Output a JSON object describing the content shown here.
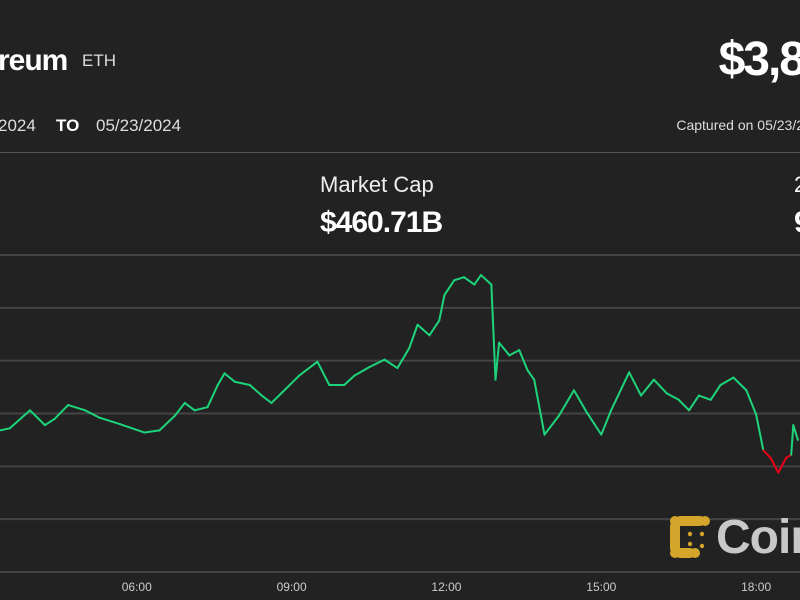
{
  "header": {
    "title": "reum",
    "symbol": "ETH",
    "price": "$3,8",
    "range_from": "2024",
    "range_to_label": "TO",
    "range_to": "05/23/2024",
    "captured": "Captured on 05/23/2"
  },
  "stats": {
    "market_cap_label": "Market Cap",
    "market_cap_value": "$460.71B",
    "right_label": "2",
    "right_value": "9"
  },
  "logo": {
    "text": "Coin",
    "color": "#d4a52a"
  },
  "colors": {
    "up": "#1ed47a",
    "down": "#e8001a",
    "grid": "#444444",
    "background": "#222222"
  },
  "chart_data": {
    "type": "line",
    "xlabel": "",
    "ylabel": "",
    "x_unit": "hour of day",
    "x_ticks": [
      {
        "value": 6,
        "label": "06:00"
      },
      {
        "value": 9,
        "label": "09:00"
      },
      {
        "value": 12,
        "label": "12:00"
      },
      {
        "value": 15,
        "label": "15:00"
      },
      {
        "value": 18,
        "label": "18:00"
      }
    ],
    "xlim": [
      3.35,
      18.85
    ],
    "ylim": [
      3650,
      3950
    ],
    "y_gridlines": [
      3650,
      3700,
      3750,
      3800,
      3850,
      3900,
      3950
    ],
    "grid": true,
    "baseline": 3765,
    "series": [
      {
        "x": [
          3.35,
          3.54,
          3.93,
          4.22,
          4.41,
          4.67,
          5.0,
          5.28,
          5.67,
          6.15,
          6.44,
          6.74,
          6.93,
          7.12,
          7.37,
          7.57,
          7.7,
          7.9,
          8.19,
          8.42,
          8.61,
          8.86,
          9.15,
          9.5,
          9.73,
          10.02,
          10.22,
          10.51,
          10.8,
          11.05,
          11.28,
          11.44,
          11.67,
          11.86,
          11.96,
          12.15,
          12.34,
          12.54,
          12.67,
          12.87,
          12.95,
          13.02,
          13.22,
          13.41,
          13.57,
          13.7,
          13.9,
          14.18,
          14.47,
          14.72,
          15.0,
          15.19,
          15.54,
          15.77,
          16.02,
          16.27,
          16.5,
          16.7,
          16.89,
          17.12,
          17.31,
          17.56,
          17.81,
          18.0,
          18.14,
          18.28,
          18.43,
          18.58,
          18.68,
          18.72,
          18.81
        ],
        "y": [
          3784,
          3786,
          3803,
          3789,
          3795,
          3808,
          3803,
          3796,
          3790,
          3782,
          3784,
          3798,
          3810,
          3803,
          3806,
          3827,
          3838,
          3830,
          3827,
          3817,
          3810,
          3822,
          3836,
          3849,
          3827,
          3827,
          3836,
          3844,
          3851,
          3843,
          3862,
          3884,
          3874,
          3888,
          3912,
          3926,
          3929,
          3922,
          3931,
          3922,
          3832,
          3867,
          3855,
          3860,
          3841,
          3832,
          3780,
          3798,
          3822,
          3801,
          3780,
          3803,
          3839,
          3817,
          3832,
          3819,
          3813,
          3803,
          3817,
          3813,
          3827,
          3834,
          3822,
          3799,
          3765,
          3758,
          3744,
          3758,
          3761,
          3789,
          3775
        ]
      }
    ]
  }
}
